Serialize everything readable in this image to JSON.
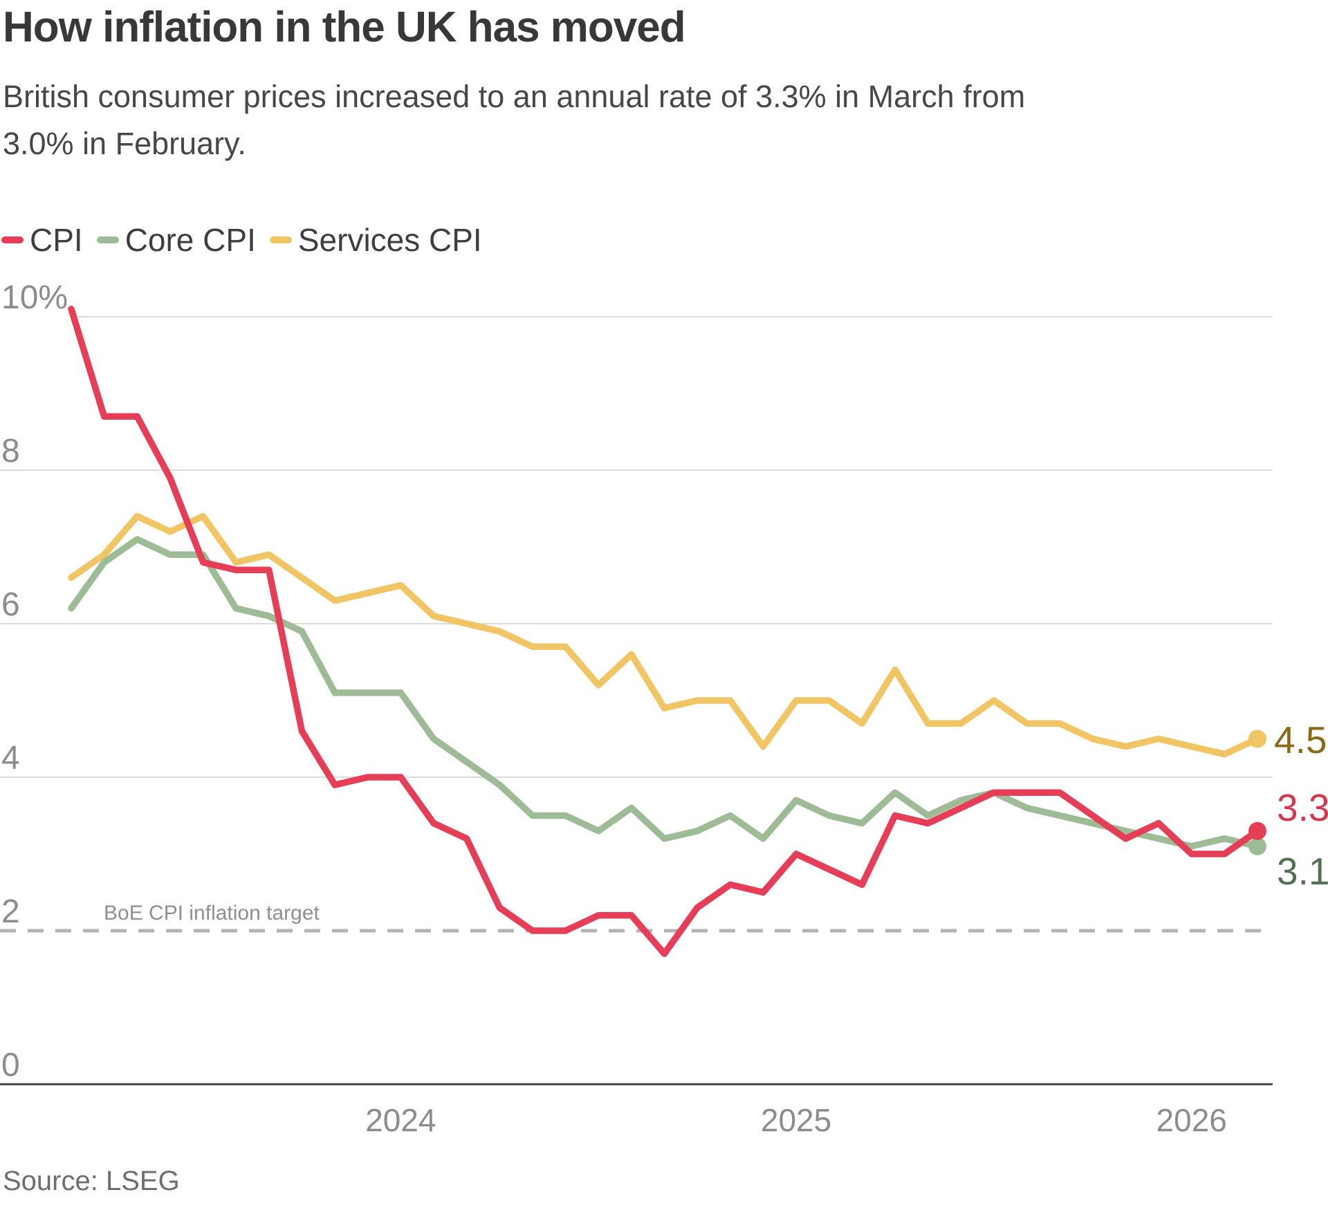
{
  "header": {
    "title": "How inflation in the UK has moved",
    "subtitle": "British consumer prices increased to an annual rate of 3.3% in March from\n3.0% in February."
  },
  "source_note": "Source: LSEG",
  "chart_data": {
    "type": "line",
    "title": "How inflation in the UK has moved",
    "x_unit": "month",
    "grid": "horizontal",
    "legend_position": "top-left",
    "ylim": [
      0,
      10.5
    ],
    "categories": [
      "Mar 2023",
      "Apr 2023",
      "May 2023",
      "Jun 2023",
      "Jul 2023",
      "Aug 2023",
      "Sep 2023",
      "Oct 2023",
      "Nov 2023",
      "Dec 2023",
      "Jan 2024",
      "Feb 2024",
      "Mar 2024",
      "Apr 2024",
      "May 2024",
      "Jun 2024",
      "Jul 2024",
      "Aug 2024",
      "Sep 2024",
      "Oct 2024",
      "Nov 2024",
      "Dec 2024",
      "Jan 2025",
      "Feb 2025",
      "Mar 2025",
      "Apr 2025",
      "May 2025",
      "Jun 2025",
      "Jul 2025",
      "Aug 2025",
      "Sep 2025",
      "Oct 2025",
      "Nov 2025",
      "Dec 2025",
      "Jan 2026",
      "Feb 2026",
      "Mar 2026"
    ],
    "series": [
      {
        "name": "CPI",
        "color": "#e63e57",
        "end_label": "3.3",
        "end_label_color": "#d93450",
        "values": [
          10.1,
          8.7,
          8.7,
          7.9,
          6.8,
          6.7,
          6.7,
          4.6,
          3.9,
          4.0,
          4.0,
          3.4,
          3.2,
          2.3,
          2.0,
          2.0,
          2.2,
          2.2,
          1.7,
          2.3,
          2.6,
          2.5,
          3.0,
          2.8,
          2.6,
          3.5,
          3.4,
          3.6,
          3.8,
          3.8,
          3.8,
          3.5,
          3.2,
          3.4,
          3.0,
          3.0,
          3.3
        ]
      },
      {
        "name": "Core CPI",
        "color": "#9dbb95",
        "end_label": "3.1",
        "end_label_color": "#527150",
        "values": [
          6.2,
          6.8,
          7.1,
          6.9,
          6.9,
          6.2,
          6.1,
          5.9,
          5.1,
          5.1,
          5.1,
          4.5,
          4.2,
          3.9,
          3.5,
          3.5,
          3.3,
          3.6,
          3.2,
          3.3,
          3.5,
          3.2,
          3.7,
          3.5,
          3.4,
          3.8,
          3.5,
          3.7,
          3.8,
          3.6,
          3.5,
          3.4,
          3.3,
          3.2,
          3.1,
          3.2,
          3.1
        ]
      },
      {
        "name": "Services CPI",
        "color": "#f1c464",
        "end_label": "4.5",
        "end_label_color": "#8b6a14",
        "values": [
          6.6,
          6.9,
          7.4,
          7.2,
          7.4,
          6.8,
          6.9,
          6.6,
          6.3,
          6.4,
          6.5,
          6.1,
          6.0,
          5.9,
          5.7,
          5.7,
          5.2,
          5.6,
          4.9,
          5.0,
          5.0,
          4.4,
          5.0,
          5.0,
          4.7,
          5.4,
          4.7,
          4.7,
          5.0,
          4.7,
          4.7,
          4.5,
          4.4,
          4.5,
          4.4,
          4.3,
          4.5
        ]
      }
    ],
    "yticks": [
      {
        "value": 10,
        "label": "10%"
      },
      {
        "value": 8,
        "label": "8"
      },
      {
        "value": 6,
        "label": "6"
      },
      {
        "value": 4,
        "label": "4"
      },
      {
        "value": 2,
        "label": "2"
      },
      {
        "value": 0,
        "label": "0"
      }
    ],
    "xticks": [
      {
        "x_index": 10,
        "label": "2024"
      },
      {
        "x_index": 22,
        "label": "2025"
      },
      {
        "x_index": 34,
        "label": "2026"
      }
    ],
    "reference_line": {
      "value": 2,
      "label": "BoE CPI inflation target",
      "color": "#b3b3b3"
    },
    "colors": {
      "grid": "#dcdcdc",
      "axis": "#454545",
      "tick_text": "#8c8c8c"
    }
  }
}
